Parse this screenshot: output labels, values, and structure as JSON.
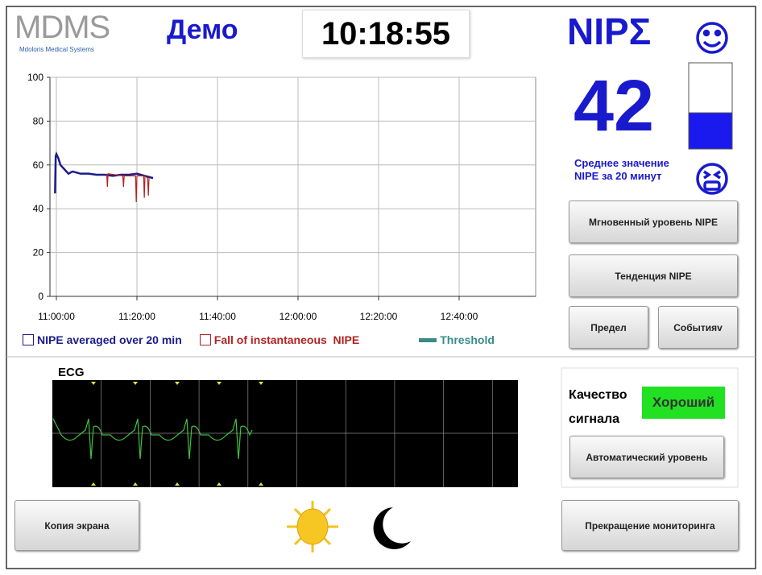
{
  "header": {
    "logo": "MDMS",
    "logo_subtitle": "Mdoloris Medical Systems",
    "mode": "Демо",
    "clock": "10:18:55",
    "index_name": "NIPΣ"
  },
  "nipe": {
    "value": 42,
    "caption_lines": [
      "Среднее значение",
      "NIPE за 20 минут"
    ]
  },
  "buttons": {
    "instant": "Мгновенный уровень NIPE",
    "trend": "Тенденция NIPE",
    "limit": "Предел",
    "events": "Событияv"
  },
  "chart_data": {
    "type": "line",
    "xlim": [
      "10:58:24",
      "12:59:00"
    ],
    "xticks": [
      "11:00:00",
      "11:20:00",
      "11:40:00",
      "12:00:00",
      "12:20:00",
      "12:40:00"
    ],
    "ylim": [
      0,
      100
    ],
    "yticks": [
      0,
      20,
      40,
      60,
      80,
      100
    ],
    "grid": true,
    "series": [
      {
        "name": "NIPE averaged over 20 min",
        "color": "#1c1c8c",
        "x": [
          "10:59:40",
          "10:59:50",
          "11:00:00",
          "11:00:30",
          "11:01:00",
          "11:02:00",
          "11:03:00",
          "11:04:00",
          "11:06:00",
          "11:08:00",
          "11:10:00",
          "11:12:00",
          "11:14:00",
          "11:16:00",
          "11:18:00",
          "11:20:00",
          "11:22:00",
          "11:24:00"
        ],
        "values": [
          47,
          64,
          65,
          63,
          60,
          58,
          56,
          57,
          56,
          56,
          55.5,
          55.5,
          55,
          55.5,
          55.5,
          56,
          55,
          54
        ]
      },
      {
        "name": "Fall of instantaneous  NIPE",
        "color": "#b22222",
        "x": [
          "11:12:30",
          "11:12:40",
          "11:12:50",
          "11:16:30",
          "11:16:40",
          "11:16:50",
          "11:19:40",
          "11:19:50",
          "11:20:00",
          "11:21:40",
          "11:21:50",
          "11:22:00",
          "11:22:40",
          "11:22:50",
          "11:23:00"
        ],
        "values": [
          56,
          50,
          56,
          55,
          50,
          55,
          55,
          43,
          55,
          55,
          45,
          55,
          54,
          46,
          54
        ]
      },
      {
        "name": "Threshold",
        "color": "#3a8a8a",
        "x": [],
        "values": []
      }
    ]
  },
  "ecg": {
    "label": "ECG"
  },
  "signal_quality": {
    "label_lines": [
      "Качество",
      "сигнала"
    ],
    "status": "Хороший",
    "button": "Автоматический уровень"
  },
  "footer": {
    "screenshot_button": "Копия экрана",
    "stop_button": "Прекращение мониторинга"
  }
}
